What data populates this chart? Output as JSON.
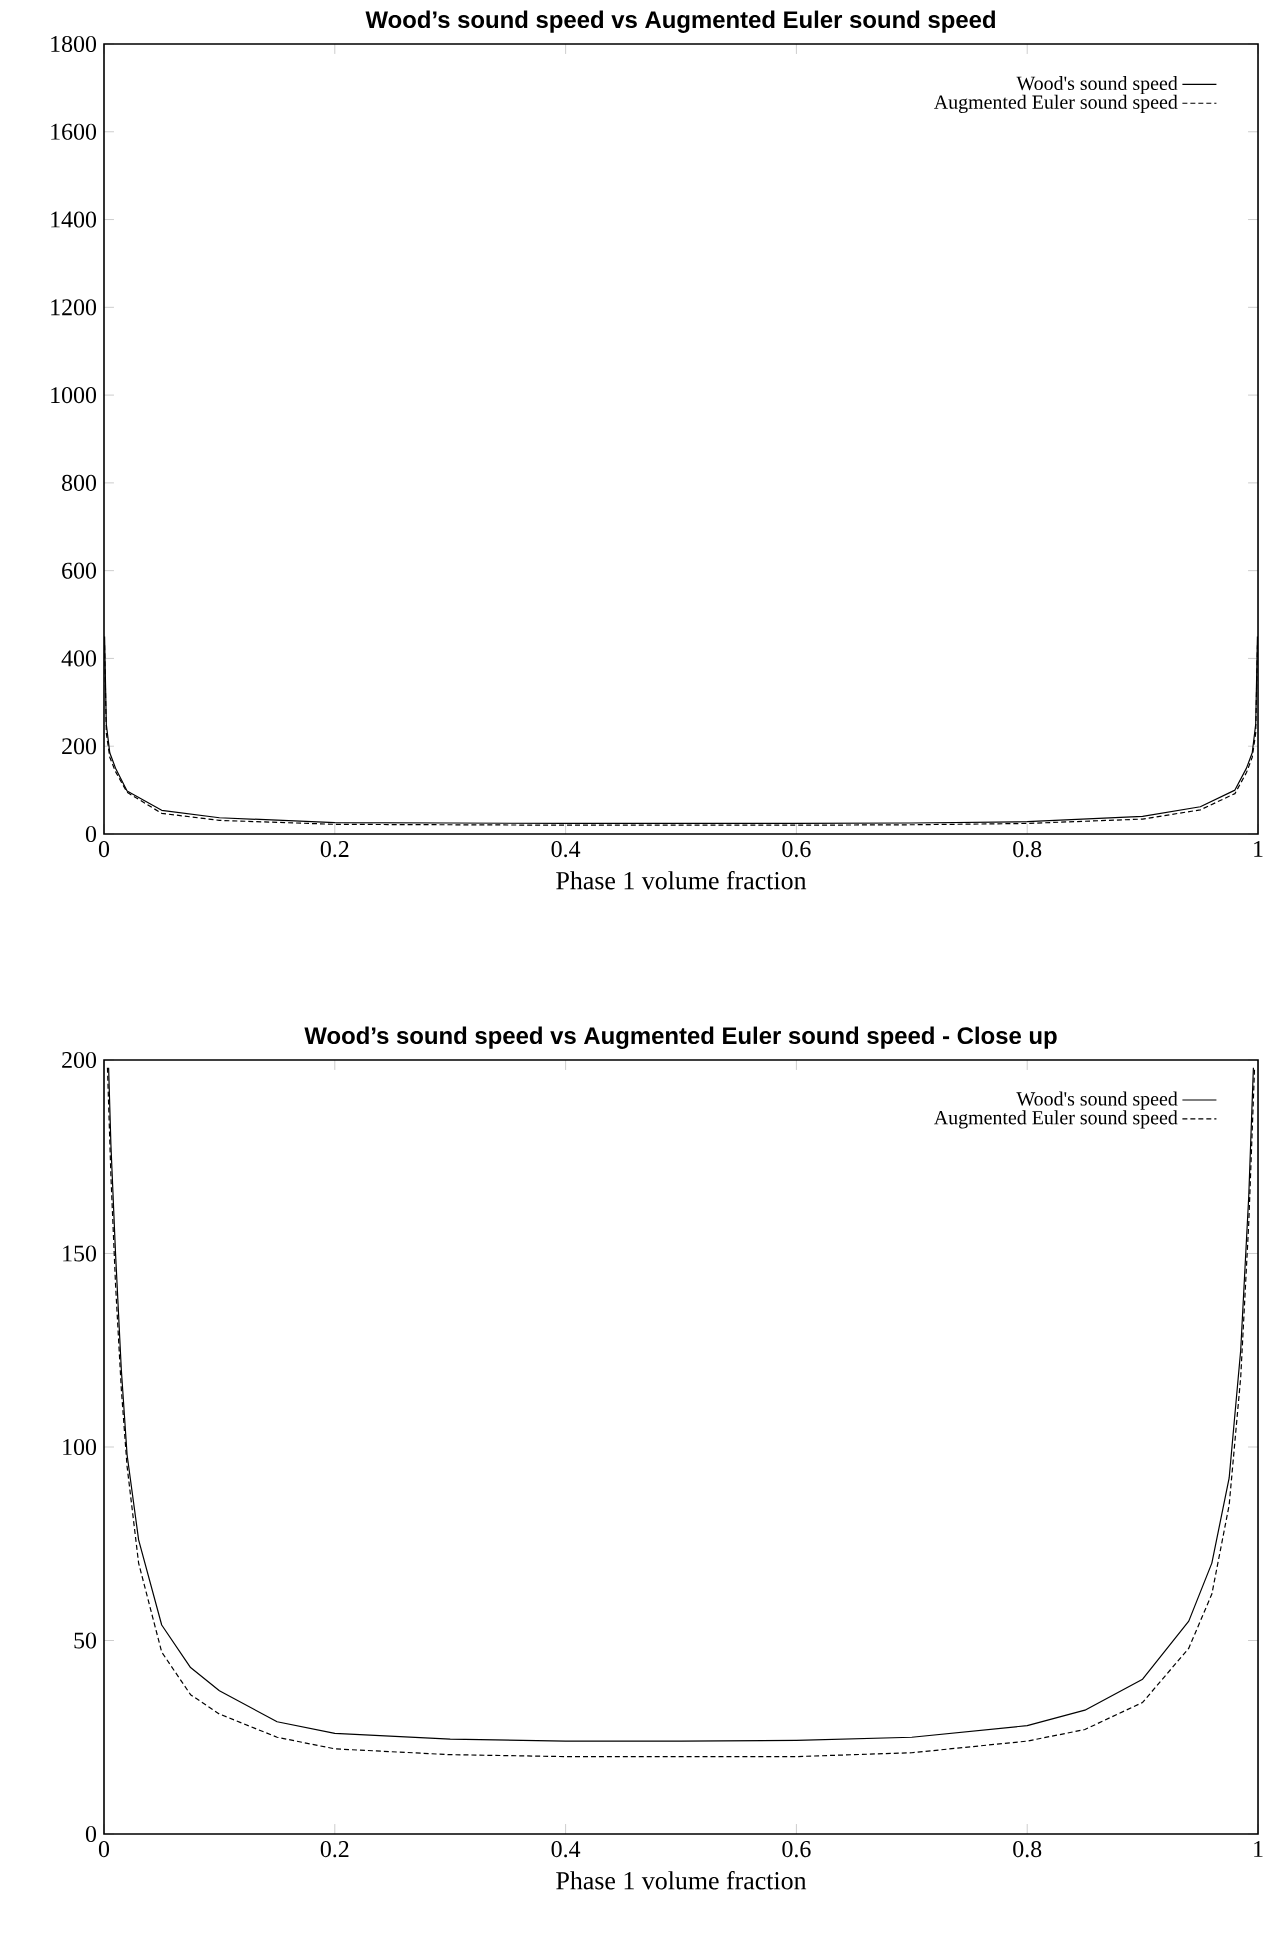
{
  "chart_data": [
    {
      "type": "line",
      "title": "Wood’s sound speed vs Augmented Euler sound speed",
      "xlabel": "Phase 1 volume fraction",
      "xlim": [
        0,
        1
      ],
      "ylim": [
        0,
        1800
      ],
      "xticks": [
        0,
        0.2,
        0.4,
        0.6,
        0.8,
        1
      ],
      "yticks": [
        0,
        200,
        400,
        600,
        800,
        1000,
        1200,
        1400,
        1600,
        1800
      ],
      "legend": "top right",
      "series": [
        {
          "name": "Wood's sound speed",
          "color": "#000000",
          "line_style": "solid",
          "x": [
            0.0005,
            0.002,
            0.005,
            0.01,
            0.02,
            0.05,
            0.1,
            0.2,
            0.3,
            0.4,
            0.5,
            0.6,
            0.7,
            0.8,
            0.9,
            0.95,
            0.98,
            0.99,
            0.995,
            0.998,
            0.9995
          ],
          "values": [
            450,
            250,
            185,
            150,
            98,
            54,
            37,
            26,
            25,
            24,
            24,
            24,
            25,
            28,
            40,
            62,
            100,
            150,
            185,
            250,
            450
          ]
        },
        {
          "name": "Augmented Euler sound speed",
          "color": "#000000",
          "line_style": "dashed",
          "x": [
            0.0005,
            0.002,
            0.005,
            0.01,
            0.02,
            0.05,
            0.1,
            0.2,
            0.3,
            0.4,
            0.5,
            0.6,
            0.7,
            0.8,
            0.9,
            0.95,
            0.98,
            0.99,
            0.995,
            0.998,
            0.9995
          ],
          "values": [
            430,
            230,
            175,
            142,
            95,
            47,
            31,
            22,
            21,
            20,
            20,
            20,
            21,
            24,
            34,
            55,
            92,
            140,
            175,
            230,
            430
          ]
        }
      ]
    },
    {
      "type": "line",
      "title": "Wood’s sound speed vs Augmented Euler sound speed - Close up",
      "xlabel": "Phase 1 volume fraction",
      "xlim": [
        0,
        1
      ],
      "ylim": [
        0,
        200
      ],
      "xticks": [
        0,
        0.2,
        0.4,
        0.6,
        0.8,
        1
      ],
      "yticks": [
        0,
        50,
        100,
        150,
        200
      ],
      "legend": "top right",
      "series": [
        {
          "name": "Wood's sound speed",
          "color": "#000000",
          "line_style": "solid",
          "x": [
            0.004,
            0.006,
            0.01,
            0.015,
            0.02,
            0.03,
            0.05,
            0.075,
            0.1,
            0.15,
            0.2,
            0.3,
            0.4,
            0.5,
            0.6,
            0.7,
            0.8,
            0.85,
            0.9,
            0.94,
            0.96,
            0.975,
            0.985,
            0.992,
            0.996
          ],
          "values": [
            198,
            178,
            150,
            120,
            98,
            76,
            54,
            43,
            37,
            29,
            26,
            24.5,
            24,
            24,
            24.2,
            25,
            28,
            32,
            40,
            55,
            70,
            92,
            125,
            165,
            198
          ]
        },
        {
          "name": "Augmented Euler sound speed",
          "color": "#000000",
          "line_style": "dashed",
          "x": [
            0.003,
            0.006,
            0.01,
            0.015,
            0.02,
            0.03,
            0.05,
            0.075,
            0.1,
            0.15,
            0.2,
            0.3,
            0.4,
            0.5,
            0.6,
            0.7,
            0.8,
            0.85,
            0.9,
            0.94,
            0.96,
            0.975,
            0.985,
            0.992,
            0.997
          ],
          "values": [
            198,
            170,
            142,
            115,
            95,
            70,
            47,
            36,
            31,
            25,
            22,
            20.5,
            20,
            20,
            20,
            21,
            24,
            27,
            34,
            48,
            62,
            85,
            118,
            158,
            198
          ]
        }
      ]
    }
  ]
}
